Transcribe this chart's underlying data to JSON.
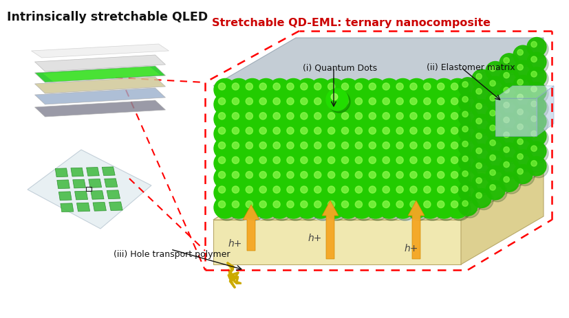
{
  "title": "Intrinsically stretchable QLED",
  "subtitle": "Stretchable QD-EML: ternary nanocomposite",
  "label_qd": "(i) Quantum Dots",
  "label_elastomer": "(ii) Elastomer matrix",
  "label_hole": "(iii) Hole transport polymer",
  "label_hplus": "h+",
  "bg_color": "#ffffff",
  "green_bright": "#22dd00",
  "green_dark": "#119900",
  "green_mid": "#22cc00",
  "arrow_color": "#f5a623",
  "base_face": "#f0e8b0",
  "base_top": "#f5ecc0",
  "base_side": "#ddd090",
  "elastomer_color": "#c8daee",
  "dashed_color": "#ff0000",
  "text_color": "#111111",
  "subtitle_color": "#cc0000",
  "hplus_color": "#444444",
  "layer_white": "#e8e8e8",
  "layer_lightblue": "#aec8dc",
  "layer_green": "#33cc33",
  "layer_cream": "#d8d0a0",
  "layer_darkgray": "#888898",
  "grid_green": "#44bb44",
  "grid_dark": "#228822"
}
